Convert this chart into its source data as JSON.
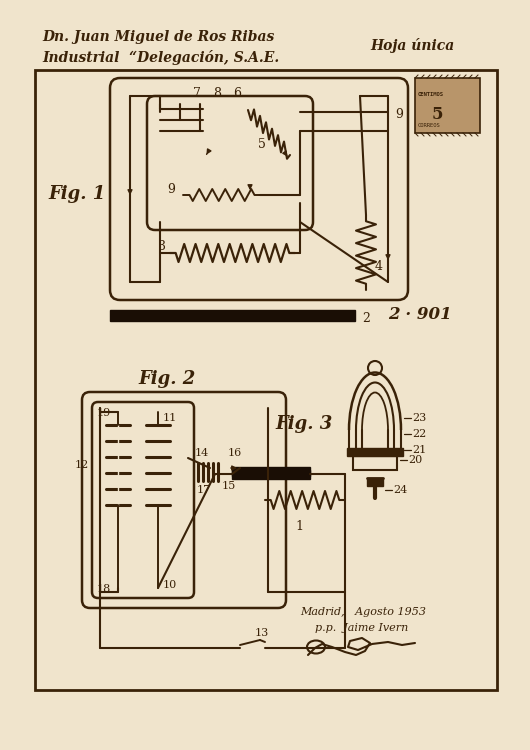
{
  "bg_color": "#f0e4cc",
  "line_color": "#3a2208",
  "fig_width": 5.3,
  "fig_height": 7.5,
  "header_line1": "Dn. Juan Miguel de Ros Ribas",
  "header_line2": "Industrial  “Delegación, S.A.E.",
  "header_right": "Hoja única",
  "fig1_label": "Fig. 1",
  "fig2_label": "Fig. 2",
  "fig3_label": "Fig. 3",
  "footer_date": "Madrid,   Agosto 1953",
  "footer_name": "p.p.  Jaime Ivern",
  "stamp_number": "2 · 901"
}
